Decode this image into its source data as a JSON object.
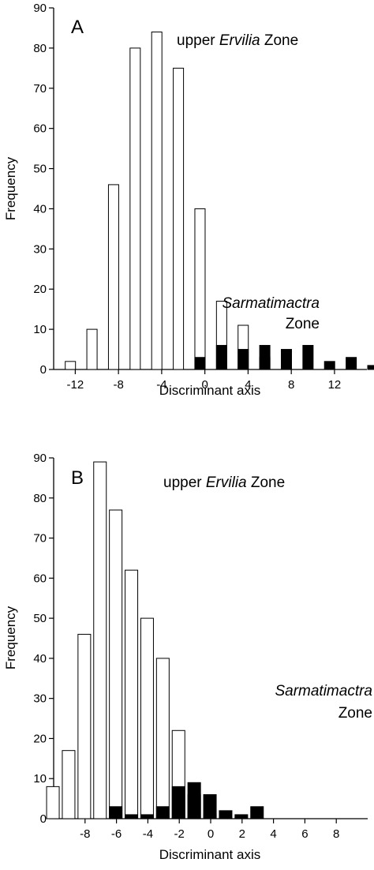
{
  "colors": {
    "open_bar": "#ffffff",
    "filled_bar": "#000000",
    "axis": "#000000"
  },
  "chart_data": [
    {
      "panel": "A",
      "type": "bar",
      "xlabel": "Discriminant axis",
      "ylabel": "Frequency",
      "xlim": [
        -14,
        15
      ],
      "ylim": [
        0,
        90
      ],
      "xticks": [
        -12,
        -8,
        -4,
        0,
        4,
        8,
        12
      ],
      "yticks": [
        0,
        10,
        20,
        30,
        40,
        50,
        60,
        70,
        80,
        90
      ],
      "bin_width": 2,
      "annotations": [
        {
          "id": "ervilia",
          "parts": [
            "upper ",
            "Ervilia",
            " Zone"
          ]
        },
        {
          "id": "sarmatimactra",
          "parts": [
            "Sarmatimactra",
            "Zone"
          ]
        }
      ],
      "series": [
        {
          "name": "upper Ervilia Zone",
          "fill": "white",
          "points": [
            {
              "x": -12,
              "y": 2
            },
            {
              "x": -10,
              "y": 10
            },
            {
              "x": -8,
              "y": 46
            },
            {
              "x": -6,
              "y": 80
            },
            {
              "x": -4,
              "y": 84
            },
            {
              "x": -2,
              "y": 75
            },
            {
              "x": 0,
              "y": 40
            },
            {
              "x": 2,
              "y": 17
            },
            {
              "x": 4,
              "y": 11
            },
            {
              "x": 6,
              "y": 3
            }
          ]
        },
        {
          "name": "Sarmatimactra Zone",
          "fill": "black",
          "points": [
            {
              "x": 0,
              "y": 3
            },
            {
              "x": 2,
              "y": 6
            },
            {
              "x": 4,
              "y": 5
            },
            {
              "x": 6,
              "y": 6
            },
            {
              "x": 8,
              "y": 5
            },
            {
              "x": 10,
              "y": 6
            },
            {
              "x": 12,
              "y": 2
            },
            {
              "x": 14,
              "y": 3
            },
            {
              "x": 16,
              "y": 1
            }
          ]
        }
      ]
    },
    {
      "panel": "B",
      "type": "bar",
      "xlabel": "Discriminant axis",
      "ylabel": "Frequency",
      "xlim": [
        -10,
        10
      ],
      "ylim": [
        0,
        90
      ],
      "xticks": [
        -8,
        -6,
        -4,
        -2,
        0,
        2,
        4,
        6,
        8
      ],
      "yticks": [
        0,
        10,
        20,
        30,
        40,
        50,
        60,
        70,
        80,
        90
      ],
      "bin_width": 1,
      "annotations": [
        {
          "id": "ervilia",
          "parts": [
            "upper ",
            "Ervilia",
            " Zone"
          ]
        },
        {
          "id": "sarmatimactra",
          "parts": [
            "Sarmatimactra",
            "Zone"
          ]
        }
      ],
      "series": [
        {
          "name": "upper Ervilia Zone",
          "fill": "white",
          "points": [
            {
              "x": -10,
              "y": 8
            },
            {
              "x": -9,
              "y": 17
            },
            {
              "x": -8,
              "y": 46
            },
            {
              "x": -7,
              "y": 89
            },
            {
              "x": -6,
              "y": 77
            },
            {
              "x": -5,
              "y": 62
            },
            {
              "x": -4,
              "y": 50
            },
            {
              "x": -3,
              "y": 40
            },
            {
              "x": -2,
              "y": 22
            },
            {
              "x": -1,
              "y": 6
            },
            {
              "x": 0,
              "y": 1
            }
          ]
        },
        {
          "name": "Sarmatimactra Zone",
          "fill": "black",
          "points": [
            {
              "x": -6,
              "y": 3
            },
            {
              "x": -5,
              "y": 1
            },
            {
              "x": -4,
              "y": 1
            },
            {
              "x": -3,
              "y": 3
            },
            {
              "x": -2,
              "y": 8
            },
            {
              "x": -1,
              "y": 9
            },
            {
              "x": 0,
              "y": 6
            },
            {
              "x": 1,
              "y": 2
            },
            {
              "x": 2,
              "y": 1
            },
            {
              "x": 3,
              "y": 3
            }
          ]
        }
      ]
    }
  ]
}
